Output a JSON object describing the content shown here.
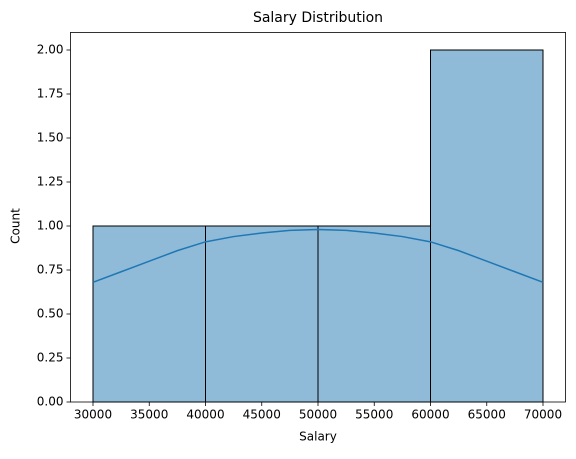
{
  "chart_data": {
    "type": "histogram",
    "title": "Salary Distribution",
    "x_label": "Salary",
    "y_label": "Count",
    "bins": [
      30000,
      40000,
      50000,
      60000,
      70000
    ],
    "values": [
      1,
      1,
      1,
      2
    ],
    "color": "#1f77b4",
    "kde": {
      "x": [
        30000,
        32500,
        35000,
        37500,
        40000,
        42500,
        45000,
        47500,
        50000,
        52500,
        55000,
        57500,
        60000,
        62500,
        65000,
        67500,
        70000
      ],
      "values": [
        0.68,
        0.74,
        0.8,
        0.86,
        0.91,
        0.94,
        0.96,
        0.975,
        0.98,
        0.975,
        0.96,
        0.94,
        0.91,
        0.86,
        0.8,
        0.74,
        0.68
      ],
      "color": "#1f77b4"
    },
    "xlim": [
      28000,
      72000
    ],
    "ylim": [
      0,
      2.1
    ],
    "xticks": [
      30000,
      35000,
      40000,
      45000,
      50000,
      55000,
      60000,
      65000,
      70000
    ],
    "yticks": [
      {
        "value": 0,
        "label": "0.00"
      },
      {
        "value": 0.25,
        "label": "0.25"
      },
      {
        "value": 0.5,
        "label": "0.50"
      },
      {
        "value": 0.75,
        "label": "0.75"
      },
      {
        "value": 1,
        "label": "1.00"
      },
      {
        "value": 1.25,
        "label": "1.25"
      },
      {
        "value": 1.5,
        "label": "1.50"
      },
      {
        "value": 1.75,
        "label": "1.75"
      },
      {
        "value": 2,
        "label": "2.00"
      }
    ]
  }
}
